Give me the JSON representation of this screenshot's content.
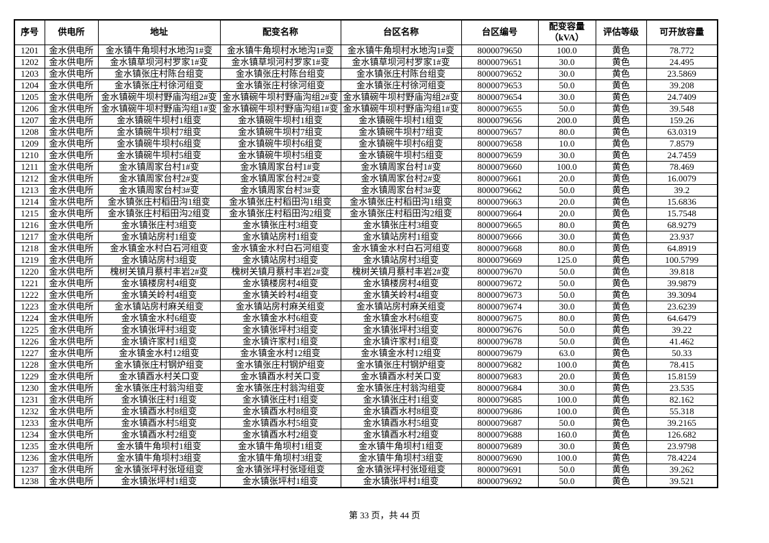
{
  "table": {
    "headers": [
      "序号",
      "供电所",
      "地址",
      "配变名称",
      "台区名称",
      "台区编号",
      "配变容量\n（kVA）",
      "评估等级",
      "可开放容量"
    ],
    "rows": [
      [
        "1201",
        "金水供电所",
        "金水镇牛角坝村水地沟1#变",
        "金水镇牛角坝村水地沟1#变",
        "金水镇牛角坝村水地沟1#变",
        "8000079650",
        "100.0",
        "黄色",
        "78.772"
      ],
      [
        "1202",
        "金水供电所",
        "金水镇草坝河村罗家1#变",
        "金水镇草坝河村罗家1#变",
        "金水镇草坝河村罗家1#变",
        "8000079651",
        "30.0",
        "黄色",
        "24.495"
      ],
      [
        "1203",
        "金水供电所",
        "金水镇张庄村陈台组变",
        "金水镇张庄村陈台组变",
        "金水镇张庄村陈台组变",
        "8000079652",
        "30.0",
        "黄色",
        "23.5869"
      ],
      [
        "1204",
        "金水供电所",
        "金水镇张庄村徐河组变",
        "金水镇张庄村徐河组变",
        "金水镇张庄村徐河组变",
        "8000079653",
        "50.0",
        "黄色",
        "39.208"
      ],
      [
        "1205",
        "金水供电所",
        "金水镇碗牛坝村野庙沟组2#变",
        "金水镇碗牛坝村野庙沟组2#变",
        "金水镇碗牛坝村野庙沟组2#变",
        "8000079654",
        "30.0",
        "黄色",
        "24.7409"
      ],
      [
        "1206",
        "金水供电所",
        "金水镇碗牛坝村野庙沟组1#变",
        "金水镇碗牛坝村野庙沟组1#变",
        "金水镇碗牛坝村野庙沟组1#变",
        "8000079655",
        "50.0",
        "黄色",
        "39.548"
      ],
      [
        "1207",
        "金水供电所",
        "金水镇碗牛坝村1组变",
        "金水镇碗牛坝村1组变",
        "金水镇碗牛坝村1组变",
        "8000079656",
        "200.0",
        "黄色",
        "159.26"
      ],
      [
        "1208",
        "金水供电所",
        "金水镇碗牛坝村7组变",
        "金水镇碗牛坝村7组变",
        "金水镇碗牛坝村7组变",
        "8000079657",
        "80.0",
        "黄色",
        "63.0319"
      ],
      [
        "1209",
        "金水供电所",
        "金水镇碗牛坝村6组变",
        "金水镇碗牛坝村6组变",
        "金水镇碗牛坝村6组变",
        "8000079658",
        "10.0",
        "黄色",
        "7.8579"
      ],
      [
        "1210",
        "金水供电所",
        "金水镇碗牛坝村5组变",
        "金水镇碗牛坝村5组变",
        "金水镇碗牛坝村5组变",
        "8000079659",
        "30.0",
        "黄色",
        "24.7459"
      ],
      [
        "1211",
        "金水供电所",
        "金水镇周家台村1#变",
        "金水镇周家台村1#变",
        "金水镇周家台村1#变",
        "8000079660",
        "100.0",
        "黄色",
        "78.469"
      ],
      [
        "1212",
        "金水供电所",
        "金水镇周家台村2#变",
        "金水镇周家台村2#变",
        "金水镇周家台村2#变",
        "8000079661",
        "20.0",
        "黄色",
        "16.0079"
      ],
      [
        "1213",
        "金水供电所",
        "金水镇周家台村3#变",
        "金水镇周家台村3#变",
        "金水镇周家台村3#变",
        "8000079662",
        "50.0",
        "黄色",
        "39.2"
      ],
      [
        "1214",
        "金水供电所",
        "金水镇张庄村稻田沟1组变",
        "金水镇张庄村稻田沟1组变",
        "金水镇张庄村稻田沟1组变",
        "8000079663",
        "20.0",
        "黄色",
        "15.6836"
      ],
      [
        "1215",
        "金水供电所",
        "金水镇张庄村稻田沟2组变",
        "金水镇张庄村稻田沟2组变",
        "金水镇张庄村稻田沟2组变",
        "8000079664",
        "20.0",
        "黄色",
        "15.7548"
      ],
      [
        "1216",
        "金水供电所",
        "金水镇张庄村3组变",
        "金水镇张庄村3组变",
        "金水镇张庄村3组变",
        "8000079665",
        "80.0",
        "黄色",
        "68.9279"
      ],
      [
        "1217",
        "金水供电所",
        "金水镇站房村1组变",
        "金水镇站房村1组变",
        "金水镇站房村1组变",
        "8000079666",
        "30.0",
        "黄色",
        "23.937"
      ],
      [
        "1218",
        "金水供电所",
        "金水镇金水村白石河组变",
        "金水镇金水村白石河组变",
        "金水镇金水村白石河组变",
        "8000079668",
        "80.0",
        "黄色",
        "64.8919"
      ],
      [
        "1219",
        "金水供电所",
        "金水镇站房村3组变",
        "金水镇站房村3组变",
        "金水镇站房村3组变",
        "8000079669",
        "125.0",
        "黄色",
        "100.5799"
      ],
      [
        "1220",
        "金水供电所",
        "槐树关镇月蔡村丰岩2#变",
        "槐树关镇月蔡村丰岩2#变",
        "槐树关镇月蔡村丰岩2#变",
        "8000079670",
        "50.0",
        "黄色",
        "39.818"
      ],
      [
        "1221",
        "金水供电所",
        "金水镇楼房村4组变",
        "金水镇楼房村4组变",
        "金水镇楼房村4组变",
        "8000079672",
        "50.0",
        "黄色",
        "39.9879"
      ],
      [
        "1222",
        "金水供电所",
        "金水镇关岭村4组变",
        "金水镇关岭村4组变",
        "金水镇关岭村4组变",
        "8000079673",
        "50.0",
        "黄色",
        "39.3094"
      ],
      [
        "1223",
        "金水供电所",
        "金水镇站房村麻关组变",
        "金水镇站房村麻关组变",
        "金水镇站房村麻关组变",
        "8000079674",
        "30.0",
        "黄色",
        "23.6239"
      ],
      [
        "1224",
        "金水供电所",
        "金水镇金水村6组变",
        "金水镇金水村6组变",
        "金水镇金水村6组变",
        "8000079675",
        "80.0",
        "黄色",
        "64.6479"
      ],
      [
        "1225",
        "金水供电所",
        "金水镇张坪村3组变",
        "金水镇张坪村3组变",
        "金水镇张坪村3组变",
        "8000079676",
        "50.0",
        "黄色",
        "39.22"
      ],
      [
        "1226",
        "金水供电所",
        "金水镇许家村1组变",
        "金水镇许家村1组变",
        "金水镇许家村1组变",
        "8000079678",
        "50.0",
        "黄色",
        "41.462"
      ],
      [
        "1227",
        "金水供电所",
        "金水镇金水村12组变",
        "金水镇金水村12组变",
        "金水镇金水村12组变",
        "8000079679",
        "63.0",
        "黄色",
        "50.33"
      ],
      [
        "1228",
        "金水供电所",
        "金水镇张庄村钢炉组变",
        "金水镇张庄村钢炉组变",
        "金水镇张庄村钢炉组变",
        "8000079682",
        "100.0",
        "黄色",
        "78.415"
      ],
      [
        "1229",
        "金水供电所",
        "金水镇酉水村关口变",
        "金水镇酉水村关口变",
        "金水镇酉水村关口变",
        "8000079683",
        "20.0",
        "黄色",
        "15.8159"
      ],
      [
        "1230",
        "金水供电所",
        "金水镇张庄村翁沟组变",
        "金水镇张庄村翁沟组变",
        "金水镇张庄村翁沟组变",
        "8000079684",
        "30.0",
        "黄色",
        "23.535"
      ],
      [
        "1231",
        "金水供电所",
        "金水镇张庄村1组变",
        "金水镇张庄村1组变",
        "金水镇张庄村1组变",
        "8000079685",
        "100.0",
        "黄色",
        "82.162"
      ],
      [
        "1232",
        "金水供电所",
        "金水镇酉水村8组变",
        "金水镇酉水村8组变",
        "金水镇酉水村8组变",
        "8000079686",
        "100.0",
        "黄色",
        "55.318"
      ],
      [
        "1233",
        "金水供电所",
        "金水镇酉水村5组变",
        "金水镇酉水村5组变",
        "金水镇酉水村5组变",
        "8000079687",
        "50.0",
        "黄色",
        "39.2165"
      ],
      [
        "1234",
        "金水供电所",
        "金水镇酉水村2组变",
        "金水镇酉水村2组变",
        "金水镇酉水村2组变",
        "8000079688",
        "160.0",
        "黄色",
        "126.682"
      ],
      [
        "1235",
        "金水供电所",
        "金水镇牛角坝村1组变",
        "金水镇牛角坝村1组变",
        "金水镇牛角坝村1组变",
        "8000079689",
        "30.0",
        "黄色",
        "23.9798"
      ],
      [
        "1236",
        "金水供电所",
        "金水镇牛角坝村3组变",
        "金水镇牛角坝村3组变",
        "金水镇牛角坝村3组变",
        "8000079690",
        "100.0",
        "黄色",
        "78.4224"
      ],
      [
        "1237",
        "金水供电所",
        "金水镇张坪村张垭组变",
        "金水镇张坪村张垭组变",
        "金水镇张坪村张垭组变",
        "8000079691",
        "50.0",
        "黄色",
        "39.262"
      ],
      [
        "1238",
        "金水供电所",
        "金水镇张坪村1组变",
        "金水镇张坪村1组变",
        "金水镇张坪村1组变",
        "8000079692",
        "50.0",
        "黄色",
        "39.521"
      ]
    ]
  },
  "footer": {
    "page_text": "第 33 页，共 44 页"
  }
}
